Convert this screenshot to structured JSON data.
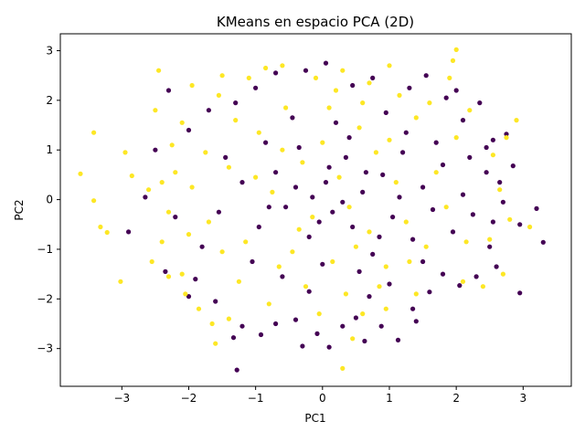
{
  "chart_data": {
    "type": "scatter",
    "title": "KMeans en espacio PCA (2D)",
    "xlabel": "PC1",
    "ylabel": "PC2",
    "xlim": [
      -3.92,
      3.72
    ],
    "ylim": [
      -3.76,
      3.34
    ],
    "xticks": [
      -3,
      -2,
      -1,
      0,
      1,
      2,
      3
    ],
    "yticks": [
      -3,
      -2,
      -1,
      0,
      1,
      2,
      3
    ],
    "xtick_labels": [
      "−3",
      "−2",
      "−1",
      "0",
      "1",
      "2",
      "3"
    ],
    "ytick_labels": [
      "−3",
      "−2",
      "−1",
      "0",
      "1",
      "2",
      "3"
    ],
    "grid": false,
    "legend": "none",
    "colors": {
      "cluster_0": "#440154",
      "cluster_1": "#fde725"
    },
    "series": [
      {
        "cluster": 0,
        "color": "#440154",
        "points": [
          [
            -1.28,
            -3.43
          ],
          [
            0.1,
            -2.97
          ],
          [
            -0.3,
            -2.95
          ],
          [
            1.13,
            -2.83
          ],
          [
            -0.08,
            -2.7
          ],
          [
            0.63,
            -2.85
          ],
          [
            -1.33,
            -2.78
          ],
          [
            -0.92,
            -2.72
          ],
          [
            -0.4,
            -2.42
          ],
          [
            0.88,
            -2.55
          ],
          [
            1.4,
            -2.45
          ],
          [
            0.3,
            -2.55
          ],
          [
            -1.2,
            -2.55
          ],
          [
            -0.7,
            -2.5
          ],
          [
            1.35,
            -2.2
          ],
          [
            0.5,
            -2.38
          ],
          [
            2.95,
            -1.88
          ],
          [
            2.05,
            -1.73
          ],
          [
            1.6,
            -1.86
          ],
          [
            2.3,
            -1.55
          ],
          [
            -1.6,
            -2.05
          ],
          [
            -2.0,
            -1.95
          ],
          [
            -0.2,
            -1.85
          ],
          [
            0.7,
            -1.95
          ],
          [
            1.8,
            -1.5
          ],
          [
            2.6,
            -1.35
          ],
          [
            -2.35,
            -1.45
          ],
          [
            -1.9,
            -1.6
          ],
          [
            3.3,
            -0.86
          ],
          [
            2.5,
            -0.95
          ],
          [
            2.95,
            -0.5
          ],
          [
            2.7,
            -0.05
          ],
          [
            3.2,
            -0.18
          ],
          [
            2.55,
            -0.45
          ],
          [
            2.65,
            0.35
          ],
          [
            2.45,
            0.55
          ],
          [
            2.85,
            0.68
          ],
          [
            2.55,
            1.2
          ],
          [
            2.75,
            1.32
          ],
          [
            2.45,
            1.05
          ],
          [
            2.1,
            1.6
          ],
          [
            2.35,
            1.95
          ],
          [
            2.0,
            2.2
          ],
          [
            1.85,
            2.05
          ],
          [
            1.55,
            2.5
          ],
          [
            1.3,
            2.25
          ],
          [
            0.75,
            2.45
          ],
          [
            0.45,
            2.3
          ],
          [
            0.05,
            2.75
          ],
          [
            -0.25,
            2.6
          ],
          [
            -0.7,
            2.55
          ],
          [
            -1.0,
            2.25
          ],
          [
            -1.3,
            1.95
          ],
          [
            -1.7,
            1.8
          ],
          [
            -2.3,
            2.2
          ],
          [
            -2.0,
            1.4
          ],
          [
            -2.5,
            1.0
          ],
          [
            -2.65,
            0.05
          ],
          [
            -2.9,
            -0.65
          ],
          [
            -2.2,
            -0.35
          ],
          [
            -1.8,
            -0.95
          ],
          [
            -1.55,
            -0.25
          ],
          [
            -1.2,
            0.35
          ],
          [
            -0.95,
            -0.55
          ],
          [
            -0.7,
            0.55
          ],
          [
            -0.55,
            -0.15
          ],
          [
            -0.35,
            1.05
          ],
          [
            -0.2,
            -0.75
          ],
          [
            0.05,
            0.35
          ],
          [
            0.15,
            -0.25
          ],
          [
            0.35,
            0.85
          ],
          [
            0.45,
            -0.55
          ],
          [
            0.6,
            0.15
          ],
          [
            0.75,
            -1.1
          ],
          [
            0.9,
            0.5
          ],
          [
            1.05,
            -0.35
          ],
          [
            1.2,
            0.95
          ],
          [
            1.35,
            -0.8
          ],
          [
            1.5,
            0.25
          ],
          [
            1.65,
            -0.2
          ],
          [
            1.8,
            0.7
          ],
          [
            1.95,
            -0.65
          ],
          [
            2.1,
            0.1
          ],
          [
            2.25,
            -0.3
          ],
          [
            0.2,
            1.55
          ],
          [
            -0.45,
            1.65
          ],
          [
            0.95,
            1.75
          ],
          [
            1.25,
            1.35
          ],
          [
            -0.85,
            1.15
          ],
          [
            -1.45,
            0.85
          ],
          [
            -1.05,
            -1.25
          ],
          [
            -0.6,
            -1.55
          ],
          [
            0.0,
            -1.3
          ],
          [
            0.55,
            -1.45
          ],
          [
            1.0,
            -1.7
          ],
          [
            1.5,
            -1.25
          ],
          [
            -0.15,
            0.05
          ],
          [
            0.3,
            -0.05
          ],
          [
            -0.05,
            -0.45
          ],
          [
            0.1,
            0.65
          ],
          [
            -0.4,
            0.25
          ],
          [
            0.65,
            0.55
          ],
          [
            1.15,
            0.05
          ],
          [
            -0.8,
            -0.15
          ],
          [
            0.4,
            1.25
          ],
          [
            0.85,
            -0.75
          ],
          [
            1.7,
            1.15
          ],
          [
            2.2,
            0.85
          ]
        ]
      },
      {
        "cluster": 1,
        "color": "#fde725",
        "points": [
          [
            -3.62,
            0.52
          ],
          [
            -3.42,
            1.35
          ],
          [
            -3.42,
            -0.02
          ],
          [
            -3.32,
            -0.55
          ],
          [
            -3.22,
            -0.66
          ],
          [
            -3.02,
            -1.65
          ],
          [
            -2.95,
            0.95
          ],
          [
            -2.85,
            0.48
          ],
          [
            -2.6,
            0.2
          ],
          [
            -2.45,
            2.6
          ],
          [
            -2.5,
            1.8
          ],
          [
            -2.4,
            -0.85
          ],
          [
            -2.55,
            -1.25
          ],
          [
            -2.3,
            -1.55
          ],
          [
            -2.1,
            -1.5
          ],
          [
            -2.05,
            -1.9
          ],
          [
            -1.85,
            -2.2
          ],
          [
            -1.65,
            -2.5
          ],
          [
            -1.6,
            -2.9
          ],
          [
            -1.4,
            -2.4
          ],
          [
            0.3,
            -3.4
          ],
          [
            0.45,
            -2.8
          ],
          [
            0.6,
            -2.3
          ],
          [
            0.95,
            -2.2
          ],
          [
            1.4,
            -1.9
          ],
          [
            2.1,
            -1.65
          ],
          [
            2.4,
            -1.75
          ],
          [
            2.7,
            -1.5
          ],
          [
            2.5,
            -0.8
          ],
          [
            2.8,
            -0.4
          ],
          [
            3.1,
            -0.55
          ],
          [
            2.65,
            0.2
          ],
          [
            2.55,
            0.9
          ],
          [
            2.9,
            1.6
          ],
          [
            2.75,
            1.25
          ],
          [
            2.2,
            1.8
          ],
          [
            1.9,
            2.45
          ],
          [
            1.95,
            2.8
          ],
          [
            2.0,
            3.02
          ],
          [
            1.0,
            2.7
          ],
          [
            0.7,
            2.35
          ],
          [
            0.3,
            2.6
          ],
          [
            -0.1,
            2.45
          ],
          [
            -0.6,
            2.7
          ],
          [
            -0.85,
            2.65
          ],
          [
            -1.1,
            2.45
          ],
          [
            -1.5,
            2.5
          ],
          [
            -1.55,
            2.1
          ],
          [
            -1.95,
            2.3
          ],
          [
            -2.1,
            1.55
          ],
          [
            -2.25,
            1.1
          ],
          [
            -2.2,
            0.55
          ],
          [
            -1.95,
            0.25
          ],
          [
            -1.7,
            -0.45
          ],
          [
            -1.4,
            0.65
          ],
          [
            -1.15,
            -0.85
          ],
          [
            -0.95,
            1.35
          ],
          [
            -0.75,
            0.15
          ],
          [
            -0.55,
            1.85
          ],
          [
            -0.45,
            -1.05
          ],
          [
            -0.3,
            0.75
          ],
          [
            -0.15,
            -0.35
          ],
          [
            0.0,
            1.15
          ],
          [
            0.15,
            -1.25
          ],
          [
            0.25,
            0.45
          ],
          [
            0.4,
            -0.15
          ],
          [
            0.55,
            1.45
          ],
          [
            0.7,
            -0.65
          ],
          [
            0.8,
            0.95
          ],
          [
            0.95,
            -1.35
          ],
          [
            1.1,
            0.35
          ],
          [
            1.25,
            -0.45
          ],
          [
            1.4,
            1.65
          ],
          [
            1.55,
            -0.95
          ],
          [
            1.7,
            0.55
          ],
          [
            1.85,
            -0.15
          ],
          [
            2.0,
            1.25
          ],
          [
            2.15,
            -0.85
          ],
          [
            -1.3,
            1.6
          ],
          [
            -1.75,
            0.95
          ],
          [
            -2.0,
            -0.7
          ],
          [
            -1.25,
            -1.65
          ],
          [
            -0.8,
            -2.1
          ],
          [
            -0.25,
            -1.75
          ],
          [
            0.35,
            -1.9
          ],
          [
            0.85,
            -1.75
          ],
          [
            1.3,
            -1.25
          ],
          [
            -0.6,
            1.0
          ],
          [
            0.1,
            1.85
          ],
          [
            0.6,
            1.95
          ],
          [
            1.0,
            1.2
          ],
          [
            -1.0,
            0.45
          ],
          [
            -0.35,
            -0.6
          ],
          [
            0.5,
            -0.95
          ],
          [
            -1.5,
            -1.05
          ],
          [
            -0.65,
            -1.35
          ],
          [
            1.6,
            1.95
          ],
          [
            -2.4,
            0.35
          ],
          [
            -2.3,
            -0.25
          ],
          [
            0.2,
            2.2
          ],
          [
            1.15,
            2.1
          ],
          [
            -0.05,
            -2.3
          ]
        ]
      }
    ]
  }
}
